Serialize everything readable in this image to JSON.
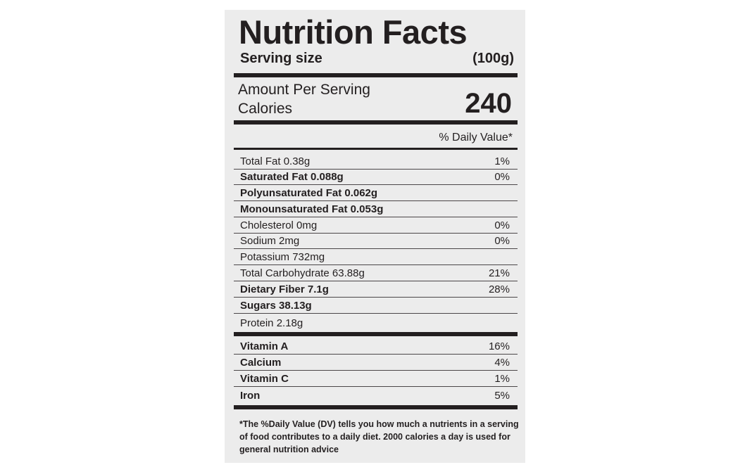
{
  "title": "Nutrition Facts",
  "serving": {
    "label": "Serving size",
    "value": "(100g)"
  },
  "amount_per_serving": "Amount Per Serving",
  "calories": {
    "label": "Calories",
    "value": "240"
  },
  "daily_value_header": "% Daily Value*",
  "nutrients": [
    {
      "name": "Total Fat 0.38g",
      "pct": "1%"
    },
    {
      "name": "Saturated Fat 0.088g",
      "pct": "0%"
    },
    {
      "name": "Polyunsaturated Fat 0.062g",
      "pct": ""
    },
    {
      "name": "Monounsaturated Fat 0.053g",
      "pct": ""
    },
    {
      "name": "Cholesterol 0mg",
      "pct": "0%"
    },
    {
      "name": "Sodium 2mg",
      "pct": "0%"
    },
    {
      "name": "Potassium 732mg",
      "pct": ""
    },
    {
      "name": "Total Carbohydrate 63.88g",
      "pct": "21%"
    },
    {
      "name": "Dietary Fiber 7.1g",
      "pct": "28%"
    },
    {
      "name": "Sugars 38.13g",
      "pct": ""
    },
    {
      "name": "Protein 2.18g",
      "pct": ""
    }
  ],
  "vitamins": [
    {
      "name": "Vitamin A",
      "pct": "16%"
    },
    {
      "name": "Calcium",
      "pct": "4%"
    },
    {
      "name": "Vitamin C",
      "pct": "1%"
    },
    {
      "name": "Iron",
      "pct": "5%"
    }
  ],
  "footnote": "*The %Daily Value (DV) tells you how much a nutrients in a serving of food contributes to a daily diet. 2000 calories a day is used for general nutrition advice"
}
